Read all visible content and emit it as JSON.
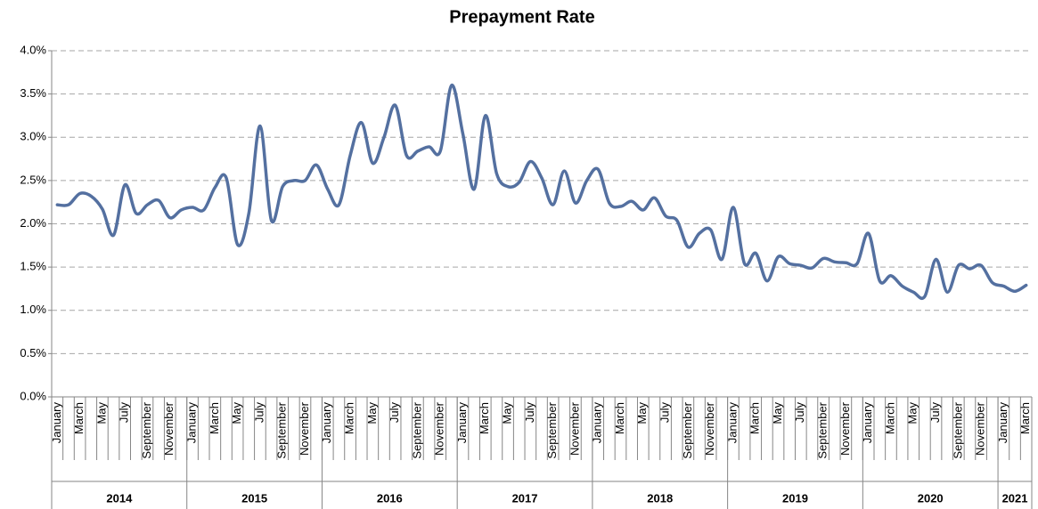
{
  "chart_data": {
    "type": "line",
    "title": "Prepayment Rate",
    "categories": [
      "January",
      null,
      "March",
      null,
      "May",
      null,
      "July",
      null,
      "September",
      null,
      "November",
      null,
      "January",
      null,
      "March",
      null,
      "May",
      null,
      "July",
      null,
      "September",
      null,
      "November",
      null,
      "January",
      null,
      "March",
      null,
      "May",
      null,
      "July",
      null,
      "September",
      null,
      "November",
      null,
      "January",
      null,
      "March",
      null,
      "May",
      null,
      "July",
      null,
      "September",
      null,
      "November",
      null,
      "January",
      null,
      "March",
      null,
      "May",
      null,
      "July",
      null,
      "September",
      null,
      "November",
      null,
      "January",
      null,
      "March",
      null,
      "May",
      null,
      "July",
      null,
      "September",
      null,
      "November",
      null,
      "January",
      null,
      "March",
      null,
      "May",
      null,
      "July",
      null,
      "September",
      null,
      "November",
      null,
      "January",
      null,
      "March"
    ],
    "category_groups": [
      "2014",
      "2015",
      "2016",
      "2017",
      "2018",
      "2019",
      "2020",
      "2021"
    ],
    "series": [
      {
        "name": "Prepayment Rate",
        "color": "#5470a0",
        "values": [
          2.22,
          2.22,
          2.35,
          2.32,
          2.17,
          1.87,
          2.45,
          2.12,
          2.22,
          2.27,
          2.07,
          2.16,
          2.19,
          2.16,
          2.42,
          2.53,
          1.76,
          2.12,
          3.13,
          2.04,
          2.43,
          2.5,
          2.5,
          2.68,
          2.4,
          2.22,
          2.79,
          3.17,
          2.7,
          3.0,
          3.37,
          2.79,
          2.84,
          2.89,
          2.84,
          3.6,
          3.04,
          2.4,
          3.25,
          2.58,
          2.43,
          2.48,
          2.72,
          2.53,
          2.22,
          2.61,
          2.24,
          2.5,
          2.63,
          2.24,
          2.2,
          2.26,
          2.16,
          2.3,
          2.09,
          2.04,
          1.73,
          1.89,
          1.93,
          1.59,
          2.19,
          1.54,
          1.66,
          1.34,
          1.62,
          1.54,
          1.52,
          1.49,
          1.6,
          1.56,
          1.55,
          1.54,
          1.89,
          1.34,
          1.4,
          1.28,
          1.21,
          1.16,
          1.59,
          1.21,
          1.52,
          1.48,
          1.52,
          1.32,
          1.28,
          1.22,
          1.29
        ]
      }
    ],
    "ylim": [
      0,
      4
    ],
    "yticks": [
      {
        "value": 0,
        "label": "0.0%"
      },
      {
        "value": 0.5,
        "label": "0.5%"
      },
      {
        "value": 1,
        "label": "1.0%"
      },
      {
        "value": 1.5,
        "label": "1.5%"
      },
      {
        "value": 2,
        "label": "2.0%"
      },
      {
        "value": 2.5,
        "label": "2.5%"
      },
      {
        "value": 3,
        "label": "3.0%"
      },
      {
        "value": 3.5,
        "label": "3.5%"
      },
      {
        "value": 4,
        "label": "4.0%"
      }
    ],
    "grid": true
  }
}
